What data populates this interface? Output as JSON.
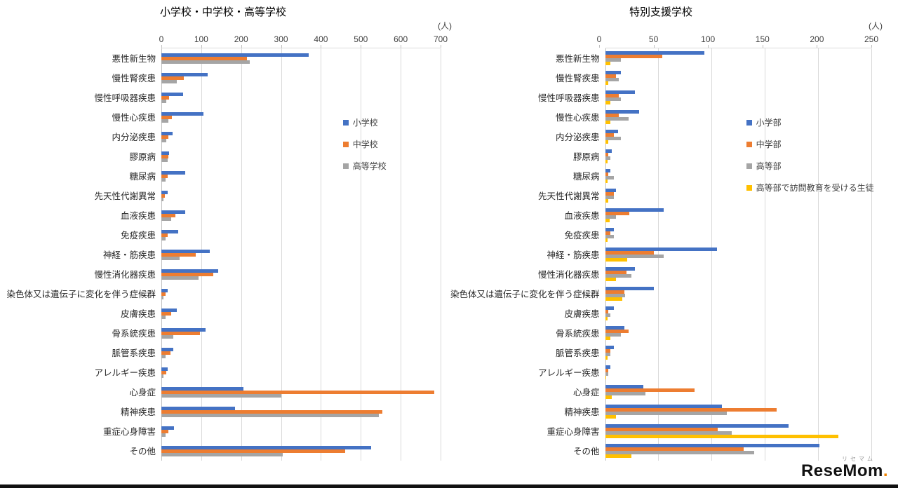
{
  "watermark": {
    "small": "リセマム",
    "brand": "ReseMom",
    "dot": "."
  },
  "chart_data": [
    {
      "type": "bar",
      "orientation": "horizontal",
      "title": "小学校・中学校・高等学校",
      "unit": "(人)",
      "xlim": [
        0,
        700
      ],
      "ticks": [
        0,
        100,
        200,
        300,
        400,
        500,
        600,
        700
      ],
      "grid": true,
      "legend_position": "inside-upper-area",
      "categories": [
        "悪性新生物",
        "慢性腎疾患",
        "慢性呼吸器疾患",
        "慢性心疾患",
        "内分泌疾患",
        "膠原病",
        "糖尿病",
        "先天性代謝異常",
        "血液疾患",
        "免疫疾患",
        "神経・筋疾患",
        "慢性消化器疾患",
        "染色体又は遺伝子に変化を伴う症候群",
        "皮膚疾患",
        "骨系統疾患",
        "脈管系疾患",
        "アレルギー疾患",
        "心身症",
        "精神疾患",
        "重症心身障害",
        "その他"
      ],
      "series": [
        {
          "name": "小学校",
          "color": "#4472C4",
          "values": [
            370,
            116,
            55,
            105,
            28,
            20,
            60,
            15,
            60,
            42,
            121,
            143,
            15,
            38,
            111,
            30,
            15,
            205,
            184,
            32,
            525
          ]
        },
        {
          "name": "中学校",
          "color": "#ED7D31",
          "values": [
            215,
            57,
            20,
            27,
            18,
            18,
            15,
            8,
            35,
            15,
            86,
            130,
            10,
            25,
            96,
            22,
            12,
            685,
            554,
            18,
            460
          ]
        },
        {
          "name": "高等学校",
          "color": "#A5A5A5",
          "values": [
            222,
            39,
            13,
            18,
            12,
            15,
            10,
            5,
            25,
            10,
            46,
            93,
            5,
            10,
            30,
            10,
            5,
            300,
            545,
            10,
            305
          ]
        }
      ]
    },
    {
      "type": "bar",
      "orientation": "horizontal",
      "title": "特別支援学校",
      "unit": "(人)",
      "xlim": [
        0,
        250
      ],
      "ticks": [
        0,
        50,
        100,
        150,
        200,
        250
      ],
      "grid": true,
      "legend_position": "inside-upper-area",
      "categories": [
        "悪性新生物",
        "慢性腎疾患",
        "慢性呼吸器疾患",
        "慢性心疾患",
        "内分泌疾患",
        "膠原病",
        "糖尿病",
        "先天性代謝異常",
        "血液疾患",
        "免疫疾患",
        "神経・筋疾患",
        "慢性消化器疾患",
        "染色体又は遺伝子に変化を伴う症候群",
        "皮膚疾患",
        "骨系統疾患",
        "脈管系疾患",
        "アレルギー疾患",
        "心身症",
        "精神疾患",
        "重症心身障害",
        "その他"
      ],
      "series": [
        {
          "name": "小学部",
          "color": "#4472C4",
          "values": [
            93,
            15,
            28,
            32,
            12,
            6,
            5,
            10,
            55,
            8,
            105,
            28,
            46,
            8,
            18,
            8,
            5,
            36,
            110,
            172,
            201
          ]
        },
        {
          "name": "中学部",
          "color": "#ED7D31",
          "values": [
            54,
            10,
            13,
            13,
            8,
            3,
            3,
            8,
            23,
            5,
            46,
            20,
            18,
            3,
            22,
            5,
            3,
            84,
            161,
            106,
            130
          ]
        },
        {
          "name": "高等部",
          "color": "#A5A5A5",
          "values": [
            15,
            13,
            15,
            22,
            15,
            5,
            8,
            8,
            10,
            8,
            55,
            25,
            19,
            5,
            15,
            5,
            3,
            38,
            114,
            119,
            140
          ]
        },
        {
          "name": "高等部で訪問教育を受ける生徒",
          "color": "#FFC000",
          "values": [
            5,
            3,
            5,
            5,
            3,
            2,
            2,
            3,
            4,
            2,
            21,
            10,
            16,
            2,
            5,
            2,
            1,
            6,
            10,
            219,
            25
          ]
        }
      ]
    }
  ]
}
